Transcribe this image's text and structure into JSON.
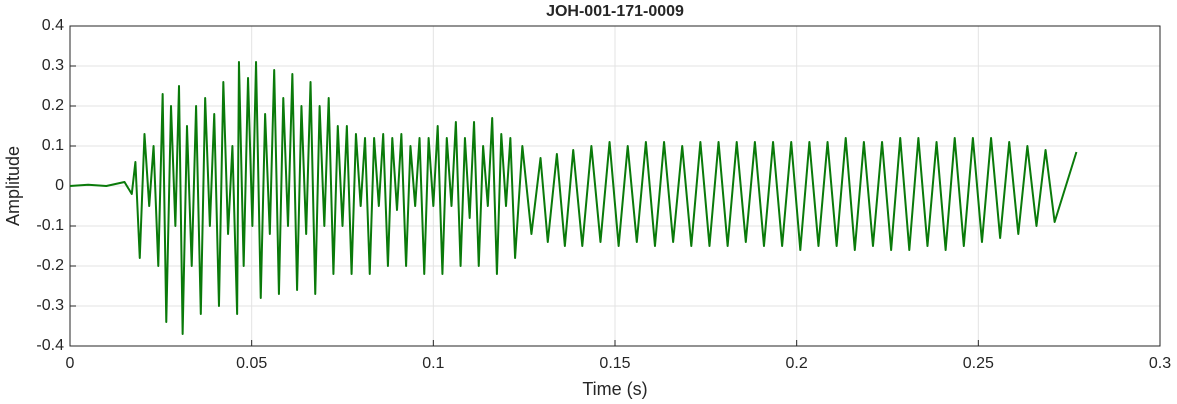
{
  "chart_data": {
    "type": "line",
    "title": "JOH-001-171-0009",
    "xlabel": "Time (s)",
    "ylabel": "Amplitude",
    "color": "#0a7a0a",
    "grid": true,
    "xlim": [
      0,
      0.3
    ],
    "xticks": [
      0,
      0.05,
      0.1,
      0.15,
      0.2,
      0.25,
      0.3
    ],
    "ylim": [
      -0.4,
      0.4
    ],
    "yticks": [
      0.4,
      0.3,
      0.2,
      0.1,
      0,
      -0.1,
      -0.2,
      -0.3,
      -0.4
    ],
    "x": [
      0,
      0.005,
      0.01,
      0.015,
      0.017,
      0.018,
      0.0192,
      0.0205,
      0.0218,
      0.023,
      0.0243,
      0.0255,
      0.0265,
      0.0278,
      0.029,
      0.03,
      0.031,
      0.0322,
      0.0335,
      0.0347,
      0.036,
      0.0372,
      0.0385,
      0.0397,
      0.041,
      0.0422,
      0.0435,
      0.0447,
      0.046,
      0.0465,
      0.0478,
      0.049,
      0.0502,
      0.0512,
      0.0525,
      0.0537,
      0.055,
      0.0562,
      0.0575,
      0.0587,
      0.06,
      0.0612,
      0.0625,
      0.0637,
      0.065,
      0.0662,
      0.0675,
      0.0687,
      0.07,
      0.0712,
      0.0725,
      0.0737,
      0.075,
      0.0762,
      0.0775,
      0.0787,
      0.08,
      0.0812,
      0.0825,
      0.0837,
      0.085,
      0.0862,
      0.0875,
      0.0887,
      0.09,
      0.0912,
      0.0925,
      0.0937,
      0.095,
      0.0962,
      0.0975,
      0.0987,
      0.1,
      0.1012,
      0.1025,
      0.1037,
      0.105,
      0.1062,
      0.1075,
      0.1087,
      0.11,
      0.1112,
      0.1125,
      0.1137,
      0.115,
      0.1162,
      0.1175,
      0.1187,
      0.12,
      0.1212,
      0.1225,
      0.1245,
      0.127,
      0.1295,
      0.1315,
      0.134,
      0.1362,
      0.1385,
      0.141,
      0.1435,
      0.146,
      0.1485,
      0.151,
      0.1535,
      0.156,
      0.1585,
      0.161,
      0.1635,
      0.166,
      0.1685,
      0.171,
      0.1735,
      0.176,
      0.1785,
      0.181,
      0.1835,
      0.186,
      0.1885,
      0.191,
      0.1935,
      0.196,
      0.1985,
      0.201,
      0.2035,
      0.206,
      0.2085,
      0.211,
      0.2135,
      0.216,
      0.2185,
      0.221,
      0.2235,
      0.226,
      0.2285,
      0.231,
      0.2335,
      0.236,
      0.2385,
      0.241,
      0.2435,
      0.246,
      0.2485,
      0.251,
      0.2535,
      0.256,
      0.2585,
      0.261,
      0.2635,
      0.266,
      0.2685,
      0.271,
      0.277
    ],
    "values": [
      0,
      0.003,
      0,
      0.01,
      -0.02,
      0.06,
      -0.18,
      0.13,
      -0.05,
      0.1,
      -0.2,
      0.23,
      -0.34,
      0.2,
      -0.1,
      0.25,
      -0.37,
      0.15,
      -0.2,
      0.2,
      -0.32,
      0.22,
      -0.1,
      0.18,
      -0.3,
      0.26,
      -0.12,
      0.1,
      -0.32,
      0.31,
      -0.2,
      0.27,
      -0.1,
      0.31,
      -0.28,
      0.18,
      -0.12,
      0.29,
      -0.27,
      0.22,
      -0.1,
      0.28,
      -0.26,
      0.2,
      -0.12,
      0.26,
      -0.27,
      0.2,
      -0.1,
      0.22,
      -0.22,
      0.15,
      -0.1,
      0.15,
      -0.22,
      0.13,
      -0.05,
      0.12,
      -0.22,
      0.12,
      -0.05,
      0.13,
      -0.2,
      0.12,
      -0.06,
      0.13,
      -0.2,
      0.1,
      -0.05,
      0.12,
      -0.22,
      0.12,
      -0.05,
      0.15,
      -0.22,
      0.12,
      -0.05,
      0.16,
      -0.2,
      0.12,
      -0.08,
      0.16,
      -0.2,
      0.1,
      -0.05,
      0.17,
      -0.22,
      0.13,
      -0.05,
      0.12,
      -0.18,
      0.1,
      -0.12,
      0.07,
      -0.14,
      0.08,
      -0.15,
      0.09,
      -0.15,
      0.1,
      -0.14,
      0.11,
      -0.15,
      0.1,
      -0.14,
      0.11,
      -0.15,
      0.11,
      -0.14,
      0.1,
      -0.15,
      0.11,
      -0.15,
      0.11,
      -0.15,
      0.11,
      -0.14,
      0.11,
      -0.15,
      0.11,
      -0.15,
      0.11,
      -0.16,
      0.11,
      -0.15,
      0.11,
      -0.15,
      0.12,
      -0.16,
      0.11,
      -0.15,
      0.11,
      -0.16,
      0.12,
      -0.16,
      0.12,
      -0.15,
      0.11,
      -0.16,
      0.12,
      -0.15,
      0.12,
      -0.14,
      0.12,
      -0.13,
      0.11,
      -0.12,
      0.1,
      -0.1,
      0.09,
      -0.09,
      0.085
    ]
  }
}
